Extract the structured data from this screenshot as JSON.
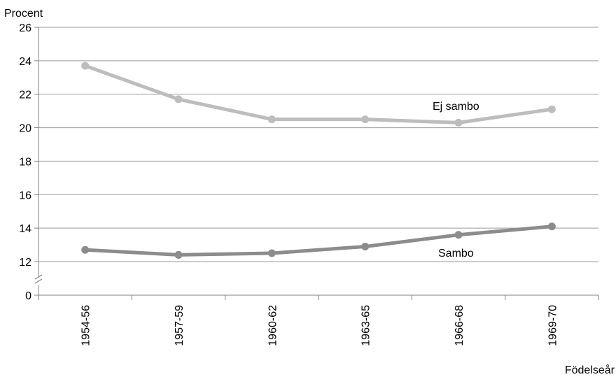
{
  "chart_data": {
    "type": "line",
    "ylabel": "Procent",
    "xlabel": "Födelseår",
    "categories": [
      "1954-56",
      "1957-59",
      "1960-62",
      "1963-65",
      "1966-68",
      "1969-70"
    ],
    "y_ticks": [
      "0",
      "12",
      "14",
      "16",
      "18",
      "20",
      "22",
      "24",
      "26"
    ],
    "ylim": [
      0,
      26
    ],
    "axis_break": "between 0 and 12",
    "grid": true,
    "series": [
      {
        "name": "Ej sambo",
        "color": "#bdbdbd",
        "values": [
          23.7,
          21.7,
          20.5,
          20.5,
          20.3,
          21.1
        ]
      },
      {
        "name": "Sambo",
        "color": "#8c8c8c",
        "values": [
          12.7,
          12.4,
          12.5,
          12.9,
          13.6,
          14.1
        ]
      }
    ]
  }
}
